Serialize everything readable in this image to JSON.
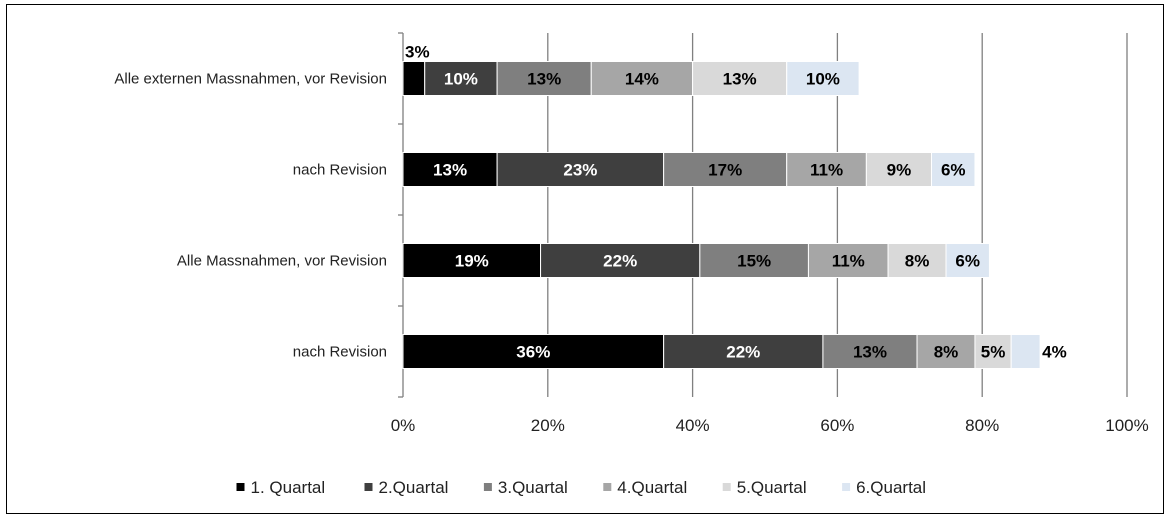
{
  "chart_data": {
    "type": "bar",
    "orientation": "horizontal",
    "stacked": true,
    "categories": [
      "Alle externen Massnahmen, vor Revision",
      "nach Revision",
      "Alle Massnahmen, vor Revision",
      "nach Revision"
    ],
    "series": [
      {
        "name": "1. Quartal",
        "color": "#000000",
        "label_color": "#ffffff",
        "values": [
          3,
          13,
          19,
          36
        ]
      },
      {
        "name": "2.Quartal",
        "color": "#3f3f3f",
        "label_color": "#ffffff",
        "values": [
          10,
          23,
          22,
          22
        ]
      },
      {
        "name": "3.Quartal",
        "color": "#7f7f7f",
        "label_color": "#000000",
        "values": [
          13,
          17,
          15,
          13
        ]
      },
      {
        "name": "4.Quartal",
        "color": "#a6a6a6",
        "label_color": "#000000",
        "values": [
          14,
          11,
          11,
          8
        ]
      },
      {
        "name": "5.Quartal",
        "color": "#d9d9d9",
        "label_color": "#000000",
        "values": [
          13,
          9,
          8,
          5
        ]
      },
      {
        "name": "6.Quartal",
        "color": "#dce6f2",
        "label_color": "#000000",
        "values": [
          10,
          6,
          6,
          4
        ]
      }
    ],
    "xlim": [
      0,
      100
    ],
    "x_ticks": [
      "0%",
      "20%",
      "40%",
      "60%",
      "80%",
      "100%"
    ],
    "x_tick_values": [
      0,
      20,
      40,
      60,
      80,
      100
    ],
    "value_suffix": "%",
    "grid": true,
    "legend_position": "bottom",
    "gridline_color": "#808080"
  }
}
